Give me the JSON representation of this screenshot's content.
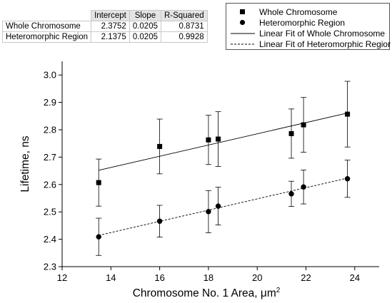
{
  "table": {
    "headers": [
      "",
      "Intercept",
      "Slope",
      "R-Squared"
    ],
    "rows": [
      {
        "label": "Whole Chromosome",
        "intercept": "2.3752",
        "slope": "0.0205",
        "r_squared": "0.8731"
      },
      {
        "label": "Heteromorphic Region",
        "intercept": "2.1375",
        "slope": "0.0205",
        "r_squared": "0.9928"
      }
    ]
  },
  "legend": {
    "items": [
      {
        "label": "Whole Chromosome",
        "symbol": "square-marker"
      },
      {
        "label": "Heteromorphic Region",
        "symbol": "circle-marker"
      },
      {
        "label": "Linear Fit of Whole Chromosome",
        "symbol": "solid-line"
      },
      {
        "label": "Linear Fit of Heteromorphic Regior",
        "symbol": "dashed-line"
      }
    ]
  },
  "chart_data": {
    "type": "scatter",
    "xlabel": "Chromosome No. 1 Area, μm",
    "xlabel_superscript": "2",
    "ylabel": "Lifetime, ns",
    "xlim": [
      12,
      25
    ],
    "ylim": [
      2.3,
      3.05
    ],
    "xticks": [
      12,
      14,
      16,
      18,
      20,
      22,
      24
    ],
    "yticks": [
      2.3,
      2.4,
      2.5,
      2.6,
      2.7,
      2.8,
      2.9,
      3.0
    ],
    "ytick_labels": [
      "2.3",
      "2.4",
      "2.5",
      "2.6",
      "2.7",
      "2.8",
      "2.9",
      "3.0"
    ],
    "grid": false,
    "series": [
      {
        "name": "Whole Chromosome",
        "marker": "square",
        "x": [
          13.5,
          16.0,
          18.0,
          18.4,
          21.4,
          21.9,
          23.7
        ],
        "y": [
          2.607,
          2.739,
          2.763,
          2.766,
          2.786,
          2.818,
          2.857
        ],
        "err": [
          0.086,
          0.1,
          0.09,
          0.1,
          0.09,
          0.1,
          0.12
        ],
        "fit": {
          "name": "Linear Fit of Whole Chromosome",
          "style": "solid",
          "intercept": 2.3752,
          "slope": 0.0205,
          "x_range": [
            13.5,
            23.7
          ]
        }
      },
      {
        "name": "Heteromorphic Region",
        "marker": "circle",
        "x": [
          13.5,
          16.0,
          18.0,
          18.4,
          21.4,
          21.9,
          23.7
        ],
        "y": [
          2.409,
          2.466,
          2.501,
          2.521,
          2.566,
          2.591,
          2.621
        ],
        "err": [
          0.068,
          0.058,
          0.077,
          0.069,
          0.046,
          0.062,
          0.068
        ],
        "fit": {
          "name": "Linear Fit of Heteromorphic Regior",
          "style": "dashed",
          "intercept": 2.1375,
          "slope": 0.0205,
          "x_range": [
            13.5,
            23.7
          ]
        }
      }
    ]
  }
}
